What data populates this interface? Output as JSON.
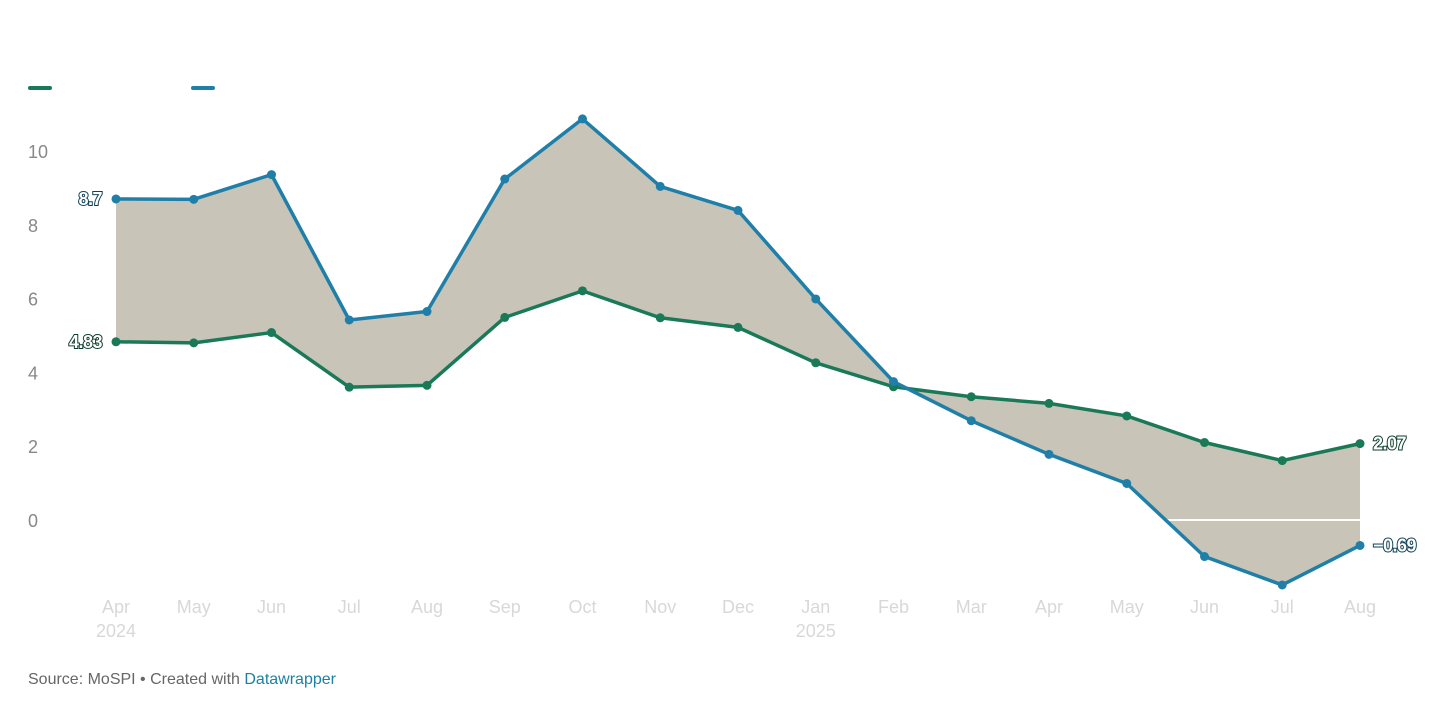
{
  "chart_data": {
    "type": "line",
    "title": "",
    "xlabel": "",
    "ylabel": "",
    "categories": [
      "Apr",
      "May",
      "Jun",
      "Jul",
      "Aug",
      "Sep",
      "Oct",
      "Nov",
      "Dec",
      "Jan",
      "Feb",
      "Mar",
      "Apr",
      "May",
      "Jun",
      "Jul",
      "Aug"
    ],
    "year_labels": {
      "0": "2024",
      "9": "2025"
    },
    "yticks": [
      0,
      2,
      4,
      6,
      8,
      10
    ],
    "ylim": [
      -1.9,
      11.5
    ],
    "grid": false,
    "fill_between": true,
    "fill_color": "#c9c4b8",
    "series": [
      {
        "name": "",
        "color": "#1a7a57",
        "values": [
          4.83,
          4.8,
          5.08,
          3.6,
          3.65,
          5.49,
          6.21,
          5.48,
          5.22,
          4.26,
          3.61,
          3.34,
          3.16,
          2.82,
          2.1,
          1.61,
          2.07
        ],
        "start_label": "4.83",
        "end_label": "2.07"
      },
      {
        "name": "",
        "color": "#1f7fa8",
        "values": [
          8.7,
          8.69,
          9.36,
          5.42,
          5.65,
          9.24,
          10.87,
          9.04,
          8.39,
          5.99,
          3.75,
          2.69,
          1.78,
          0.99,
          -0.99,
          -1.76,
          -0.69
        ],
        "start_label": "8.7",
        "end_label": "−0.69"
      }
    ]
  },
  "footer": {
    "source_text": "Source: MoSPI • Created with ",
    "link_text": "Datawrapper"
  }
}
